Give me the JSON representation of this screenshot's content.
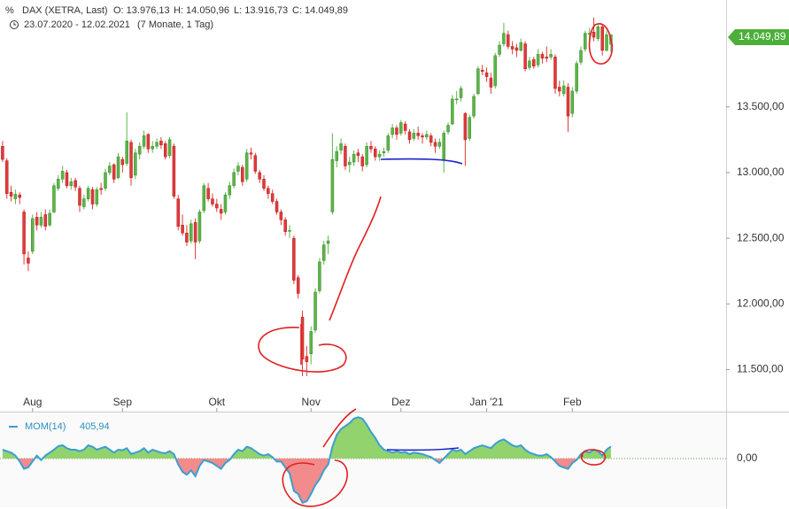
{
  "chart_data": {
    "type": "candlestick",
    "symbol": "DAX (XETRA, Last)",
    "open_label": "O: 13.976,13",
    "high_label": "H: 14.050,96",
    "low_label": "L: 13.916,73",
    "close_label": "C: 14.049,89",
    "range": "23.07.2020 - 12.02.2021",
    "period": "(7 Monate, 1 Tag)",
    "last_label": "14.049,89",
    "up_color": "#5cb548",
    "down_color": "#e03a3a",
    "xlim": [
      -0.6,
      168.9
    ],
    "xticks": [
      {
        "value": 7,
        "label": "Aug"
      },
      {
        "value": 28,
        "label": "Sep"
      },
      {
        "value": 50,
        "label": "Okt"
      },
      {
        "value": 72,
        "label": "Nov"
      },
      {
        "value": 93,
        "label": "Dez"
      },
      {
        "value": 113,
        "label": "Jan '21"
      },
      {
        "value": 133,
        "label": "Feb"
      }
    ],
    "ylim": [
      11180,
      14280
    ],
    "yticks": [
      {
        "value": 11500,
        "label": "11.500,00"
      },
      {
        "value": 12000,
        "label": "12.000,00"
      },
      {
        "value": 12500,
        "label": "12.500,00"
      },
      {
        "value": 13000,
        "label": "13.000,00"
      },
      {
        "value": 13500,
        "label": "13.500,00"
      }
    ],
    "ohlc": [
      [
        13200,
        13240,
        13080,
        13100
      ],
      [
        13090,
        13110,
        12800,
        12840
      ],
      [
        12850,
        12900,
        12780,
        12820
      ],
      [
        12800,
        12870,
        12760,
        12835
      ],
      [
        12830,
        12850,
        12760,
        12810
      ],
      [
        12700,
        12720,
        12300,
        12380
      ],
      [
        12350,
        12400,
        12250,
        12310
      ],
      [
        12400,
        12680,
        12380,
        12650
      ],
      [
        12660,
        12700,
        12560,
        12600
      ],
      [
        12600,
        12700,
        12580,
        12660
      ],
      [
        12680,
        12720,
        12560,
        12590
      ],
      [
        12600,
        12720,
        12590,
        12690
      ],
      [
        12700,
        12920,
        12690,
        12900
      ],
      [
        12880,
        12980,
        12860,
        12950
      ],
      [
        12950,
        13050,
        12920,
        13010
      ],
      [
        13000,
        13020,
        12880,
        12900
      ],
      [
        12900,
        12960,
        12870,
        12930
      ],
      [
        12940,
        12960,
        12860,
        12890
      ],
      [
        12880,
        12900,
        12700,
        12750
      ],
      [
        12740,
        12830,
        12720,
        12800
      ],
      [
        12800,
        12900,
        12780,
        12880
      ],
      [
        12870,
        12890,
        12720,
        12760
      ],
      [
        12760,
        12890,
        12740,
        12870
      ],
      [
        12880,
        12920,
        12830,
        12870
      ],
      [
        12880,
        13030,
        12860,
        13000
      ],
      [
        13000,
        13080,
        12980,
        13050
      ],
      [
        13060,
        13070,
        12920,
        12950
      ],
      [
        12960,
        13150,
        12950,
        13120
      ],
      [
        13100,
        13120,
        13000,
        13060
      ],
      [
        13070,
        13460,
        13050,
        13240
      ],
      [
        13230,
        13250,
        12900,
        12960
      ],
      [
        12980,
        13180,
        12950,
        13150
      ],
      [
        13140,
        13230,
        13100,
        13200
      ],
      [
        13200,
        13320,
        13180,
        13280
      ],
      [
        13290,
        13300,
        13150,
        13180
      ],
      [
        13180,
        13240,
        13150,
        13200
      ],
      [
        13200,
        13260,
        13180,
        13230
      ],
      [
        13240,
        13270,
        13180,
        13210
      ],
      [
        13220,
        13240,
        13100,
        13120
      ],
      [
        13130,
        13270,
        13110,
        13250
      ],
      [
        13200,
        13220,
        12800,
        12820
      ],
      [
        12800,
        12830,
        12560,
        12590
      ],
      [
        12600,
        12680,
        12520,
        12540
      ],
      [
        12540,
        12600,
        12440,
        12470
      ],
      [
        12480,
        12640,
        12460,
        12610
      ],
      [
        12620,
        12650,
        12340,
        12470
      ],
      [
        12480,
        12720,
        12460,
        12700
      ],
      [
        12710,
        12920,
        12690,
        12900
      ],
      [
        12880,
        12920,
        12780,
        12800
      ],
      [
        12800,
        12840,
        12740,
        12760
      ],
      [
        12760,
        12800,
        12700,
        12730
      ],
      [
        12720,
        12760,
        12640,
        12690
      ],
      [
        12700,
        12850,
        12680,
        12830
      ],
      [
        12830,
        12930,
        12800,
        12900
      ],
      [
        12900,
        13030,
        12880,
        13000
      ],
      [
        13010,
        13080,
        12980,
        13050
      ],
      [
        13040,
        13060,
        12900,
        12930
      ],
      [
        12950,
        13180,
        12930,
        13150
      ],
      [
        13150,
        13190,
        13100,
        13140
      ],
      [
        13130,
        13150,
        12990,
        13010
      ],
      [
        13000,
        13020,
        12920,
        12950
      ],
      [
        12950,
        12980,
        12860,
        12880
      ],
      [
        12880,
        12900,
        12800,
        12840
      ],
      [
        12840,
        12870,
        12760,
        12780
      ],
      [
        12780,
        12800,
        12680,
        12700
      ],
      [
        12700,
        12720,
        12600,
        12640
      ],
      [
        12640,
        12660,
        12520,
        12550
      ],
      [
        12560,
        12600,
        12500,
        12560
      ],
      [
        12500,
        12520,
        12150,
        12180
      ],
      [
        12200,
        12220,
        12040,
        12080
      ],
      [
        11900,
        11950,
        11450,
        11580
      ],
      [
        11600,
        11680,
        11450,
        11560
      ],
      [
        11620,
        11830,
        11540,
        11790
      ],
      [
        11800,
        12120,
        11780,
        12090
      ],
      [
        12100,
        12350,
        12080,
        12320
      ],
      [
        12330,
        12480,
        12300,
        12450
      ],
      [
        12460,
        12520,
        12380,
        12480
      ],
      [
        12700,
        13300,
        12680,
        13100
      ],
      [
        13090,
        13200,
        13040,
        13160
      ],
      [
        13170,
        13260,
        13140,
        13220
      ],
      [
        13200,
        13220,
        13020,
        13050
      ],
      [
        13060,
        13120,
        13000,
        13080
      ],
      [
        13080,
        13170,
        13050,
        13140
      ],
      [
        13150,
        13180,
        13080,
        13130
      ],
      [
        13120,
        13140,
        13010,
        13050
      ],
      [
        13060,
        13230,
        13040,
        13200
      ],
      [
        13200,
        13240,
        13150,
        13180
      ],
      [
        13180,
        13200,
        13090,
        13120
      ],
      [
        13120,
        13170,
        13090,
        13140
      ],
      [
        13150,
        13190,
        13120,
        13160
      ],
      [
        13170,
        13300,
        13150,
        13280
      ],
      [
        13290,
        13370,
        13260,
        13340
      ],
      [
        13340,
        13360,
        13250,
        13290
      ],
      [
        13300,
        13400,
        13280,
        13380
      ],
      [
        13370,
        13390,
        13290,
        13320
      ],
      [
        13310,
        13330,
        13220,
        13250
      ],
      [
        13260,
        13330,
        13240,
        13300
      ],
      [
        13300,
        13350,
        13250,
        13280
      ],
      [
        13280,
        13300,
        13220,
        13270
      ],
      [
        13270,
        13320,
        13250,
        13290
      ],
      [
        13280,
        13300,
        13200,
        13230
      ],
      [
        13230,
        13260,
        13150,
        13200
      ],
      [
        13200,
        13260,
        13180,
        13230
      ],
      [
        13100,
        13320,
        13000,
        13300
      ],
      [
        13310,
        13380,
        13290,
        13360
      ],
      [
        13370,
        13590,
        13360,
        13560
      ],
      [
        13560,
        13620,
        13520,
        13560
      ],
      [
        13570,
        13660,
        13540,
        13640
      ],
      [
        13450,
        13460,
        13050,
        13250
      ],
      [
        13260,
        13440,
        13240,
        13420
      ],
      [
        13430,
        13600,
        13410,
        13580
      ],
      [
        13600,
        13810,
        13590,
        13790
      ],
      [
        13780,
        13820,
        13740,
        13770
      ],
      [
        13760,
        13800,
        13690,
        13730
      ],
      [
        13720,
        13760,
        13600,
        13650
      ],
      [
        13660,
        13910,
        13640,
        13890
      ],
      [
        13900,
        14000,
        13880,
        13970
      ],
      [
        13980,
        14140,
        13960,
        14060
      ],
      [
        14050,
        14080,
        13940,
        13960
      ],
      [
        13960,
        14000,
        13900,
        13940
      ],
      [
        13950,
        13980,
        13880,
        13930
      ],
      [
        13930,
        14020,
        13920,
        13990
      ],
      [
        13980,
        14000,
        13770,
        13790
      ],
      [
        13800,
        13880,
        13780,
        13850
      ],
      [
        13860,
        13880,
        13790,
        13810
      ],
      [
        13820,
        13940,
        13800,
        13900
      ],
      [
        13900,
        13920,
        13830,
        13870
      ],
      [
        13880,
        13960,
        13840,
        13870
      ],
      [
        13880,
        13940,
        13860,
        13900
      ],
      [
        13880,
        13900,
        13600,
        13640
      ],
      [
        13650,
        13700,
        13580,
        13620
      ],
      [
        13600,
        13700,
        13580,
        13660
      ],
      [
        13650,
        13680,
        13310,
        13430
      ],
      [
        13450,
        13650,
        13420,
        13620
      ],
      [
        13620,
        13850,
        13600,
        13830
      ],
      [
        13840,
        13960,
        13820,
        13930
      ],
      [
        13940,
        14080,
        13920,
        14060
      ],
      [
        14060,
        14100,
        14010,
        14060
      ],
      [
        14070,
        14180,
        14000,
        14030
      ],
      [
        14020,
        14130,
        14000,
        14110
      ],
      [
        14110,
        14130,
        13890,
        13930
      ],
      [
        13930,
        14080,
        13920,
        14050
      ],
      [
        13976.13,
        14050.96,
        13916.73,
        14049.89
      ]
    ],
    "indicator": {
      "name": "MOM(14)",
      "last_label": "405,94",
      "line_color": "#3a9fd0",
      "pos_color": "#92d36e",
      "neg_color": "#f28b8b",
      "ylim": [
        -1560,
        1530
      ],
      "yticks": [
        {
          "value": 0,
          "label": "0,00"
        }
      ],
      "values": [
        300,
        250,
        200,
        100,
        -100,
        -350,
        -300,
        -100,
        100,
        -50,
        100,
        200,
        300,
        420,
        450,
        350,
        300,
        300,
        250,
        300,
        450,
        400,
        300,
        350,
        400,
        300,
        200,
        300,
        280,
        350,
        150,
        200,
        250,
        350,
        200,
        300,
        250,
        200,
        180,
        250,
        150,
        -200,
        -450,
        -550,
        -400,
        -600,
        -250,
        -50,
        -100,
        -150,
        -250,
        -350,
        -150,
        -50,
        150,
        300,
        250,
        400,
        350,
        250,
        150,
        100,
        150,
        50,
        -100,
        -100,
        -300,
        -500,
        -1100,
        -1200,
        -1500,
        -1450,
        -1200,
        -900,
        -700,
        -400,
        -200,
        400,
        800,
        1000,
        1100,
        1200,
        1350,
        1400,
        1350,
        1150,
        900,
        700,
        450,
        300,
        250,
        200,
        250,
        200,
        220,
        150,
        200,
        180,
        150,
        100,
        50,
        -50,
        -150,
        0,
        150,
        300,
        250,
        300,
        150,
        250,
        350,
        400,
        450,
        400,
        350,
        500,
        600,
        650,
        550,
        450,
        400,
        450,
        300,
        200,
        150,
        100,
        100,
        150,
        50,
        -100,
        -250,
        -300,
        -350,
        -150,
        -50,
        150,
        250,
        200,
        300,
        250,
        100,
        300,
        405.94
      ]
    }
  }
}
